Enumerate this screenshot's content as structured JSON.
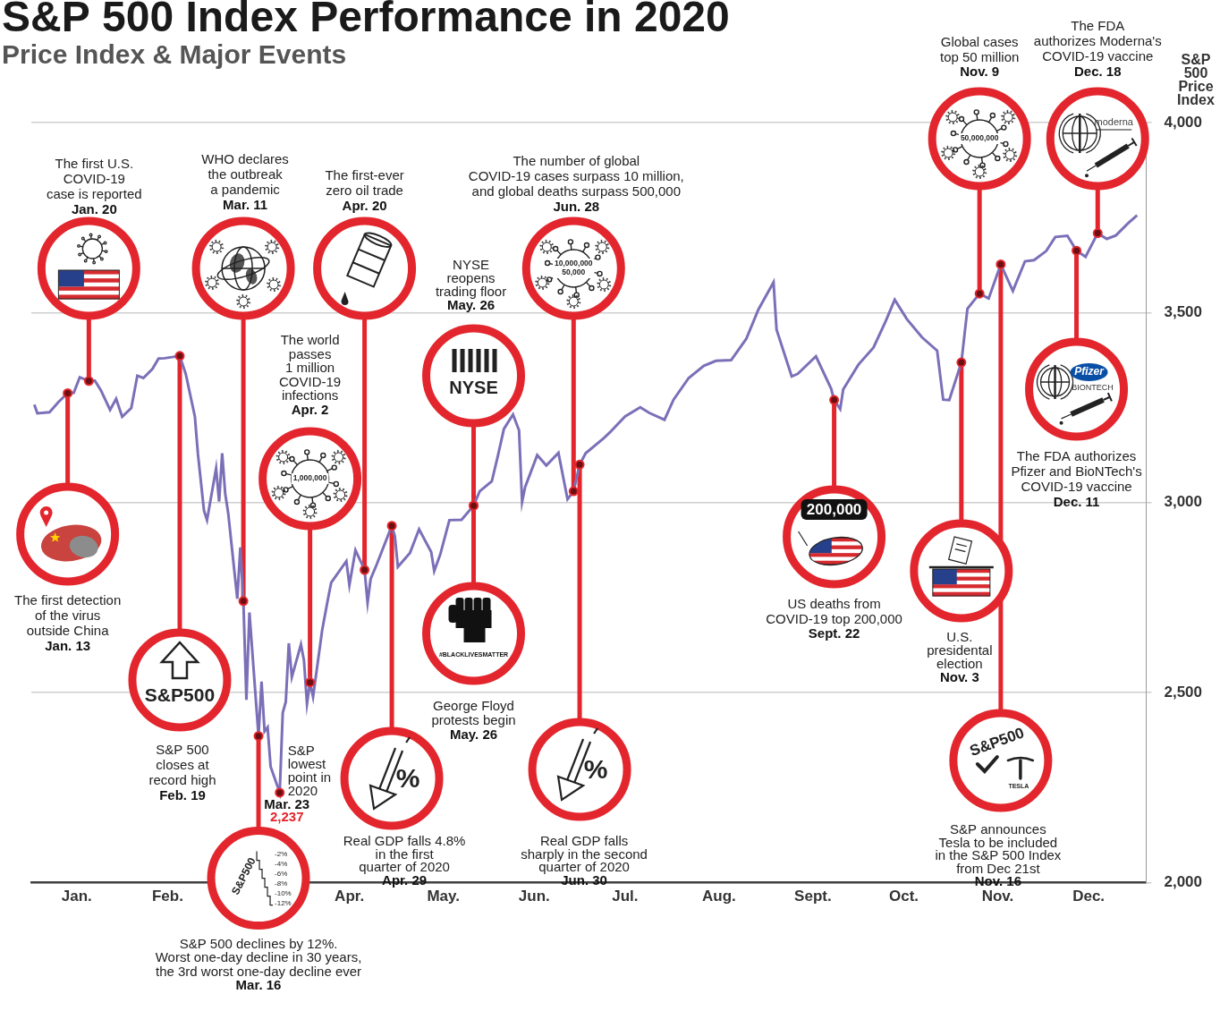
{
  "chart_data": {
    "type": "line",
    "title": "S&P 500 Index Performance in 2020",
    "subtitle": "Price Index & Major Events",
    "y_label": "S&P 500 Price Index",
    "color": "#7b70b8",
    "grid": true,
    "x": [
      2,
      3,
      7,
      10,
      13,
      15,
      17,
      20,
      22,
      24,
      27,
      29,
      31,
      34,
      36,
      38,
      41,
      43,
      45,
      50,
      52,
      55,
      56,
      58,
      59,
      62,
      63,
      64,
      65,
      66,
      69,
      70,
      71,
      72,
      73,
      76,
      77,
      78,
      79,
      80,
      83,
      84,
      85,
      86,
      87,
      90,
      91,
      92,
      93,
      94,
      97,
      99,
      100,
      105,
      106,
      108,
      111,
      112,
      113,
      115,
      120,
      121,
      122,
      126,
      129,
      133,
      134,
      136,
      139,
      143,
      147,
      149,
      153,
      155,
      157,
      160,
      162,
      163,
      164,
      168,
      171,
      175,
      178,
      180,
      182,
      184,
      190,
      192,
      197,
      202,
      205,
      210,
      213,
      218,
      223,
      227,
      232,
      237,
      241,
      246,
      247,
      252,
      254,
      260,
      265,
      266,
      268,
      269,
      274,
      279,
      283,
      286,
      290,
      295,
      300,
      302,
      304,
      308,
      310,
      314,
      317,
      321,
      325,
      329,
      332,
      336,
      339,
      343,
      346,
      349,
      353,
      356,
      359,
      363,
      366
    ],
    "values": [
      3258,
      3235,
      3238,
      3265,
      3288,
      3289,
      3330,
      3320,
      3321,
      3295,
      3244,
      3273,
      3226,
      3249,
      3334,
      3328,
      3352,
      3379,
      3380,
      3386,
      3338,
      3226,
      3128,
      2979,
      2954,
      3090,
      3003,
      3130,
      3024,
      2972,
      2747,
      2882,
      2741,
      2481,
      2711,
      2386,
      2529,
      2398,
      2409,
      2305,
      2237,
      2447,
      2476,
      2630,
      2541,
      2627,
      2585,
      2471,
      2527,
      2489,
      2664,
      2750,
      2790,
      2846,
      2783,
      2875,
      2823,
      2737,
      2799,
      2837,
      2939,
      2912,
      2831,
      2868,
      2930,
      2870,
      2820,
      2864,
      2954,
      2955,
      2992,
      3030,
      3056,
      3123,
      3194,
      3232,
      3190,
      3002,
      3041,
      3125,
      3098,
      3131,
      3009,
      3030,
      3100,
      3130,
      3170,
      3185,
      3227,
      3251,
      3236,
      3218,
      3271,
      3328,
      3360,
      3373,
      3375,
      3431,
      3508,
      3580,
      3455,
      3332,
      3339,
      3385,
      3300,
      3270,
      3246,
      3298,
      3363,
      3408,
      3477,
      3534,
      3483,
      3435,
      3400,
      3271,
      3270,
      3369,
      3510,
      3550,
      3537,
      3627,
      3557,
      3635,
      3638,
      3662,
      3699,
      3702,
      3663,
      3647,
      3709,
      3694,
      3703,
      3735,
      3756
    ],
    "xlim": [
      1,
      369
    ],
    "xticks": [
      {
        "value": 16,
        "label": "Jan."
      },
      {
        "value": 46,
        "label": "Feb."
      },
      {
        "value": 106,
        "label": "Apr."
      },
      {
        "value": 137,
        "label": "May."
      },
      {
        "value": 167,
        "label": "Jun."
      },
      {
        "value": 197,
        "label": "Jul."
      },
      {
        "value": 228,
        "label": "Aug."
      },
      {
        "value": 259,
        "label": "Sept."
      },
      {
        "value": 289,
        "label": "Oct."
      },
      {
        "value": 320,
        "label": "Nov."
      },
      {
        "value": 350,
        "label": "Dec."
      }
    ],
    "ylim": [
      2000,
      4000
    ],
    "yticks": [
      {
        "value": 2000,
        "label": "2,000"
      },
      {
        "value": 2500,
        "label": "2,500"
      },
      {
        "value": 3000,
        "label": "3,000"
      },
      {
        "value": 3500,
        "label": "3,500"
      },
      {
        "value": 4000,
        "label": "4,000"
      }
    ],
    "annotations": [
      {
        "x": 13,
        "value": 3288,
        "date": "Jan. 13",
        "text": [
          "The first detection",
          "of the virus",
          "outside China"
        ]
      },
      {
        "x": 20,
        "value": 3320,
        "date": "Jan. 20",
        "text": [
          "The first U.S.",
          "COVID-19",
          "case is reported"
        ]
      },
      {
        "x": 50,
        "value": 3386,
        "date": "Feb. 19",
        "text": [
          "S&P 500",
          "closes at",
          "record high"
        ],
        "icon_text": [
          "S&P500"
        ]
      },
      {
        "x": 71,
        "value": 2741,
        "date": "Mar. 11",
        "text": [
          "WHO declares",
          "the outbreak",
          "a pandemic"
        ]
      },
      {
        "x": 76,
        "value": 2386,
        "date": "Mar. 16",
        "text": [
          "S&P 500 declines by 12%.",
          "Worst one-day decline in 30 years,",
          "the 3rd worst one-day decline ever"
        ],
        "icon_text": [
          "S&P500",
          "-2%",
          "-4%",
          "-6%",
          "-8%",
          "-10%",
          "-12%"
        ]
      },
      {
        "x": 83,
        "value": 2237,
        "value_label": "2,237",
        "date": "Mar. 23",
        "text": [
          "S&P",
          "lowest",
          "point in",
          "2020"
        ]
      },
      {
        "x": 93,
        "value": 2527,
        "date": "Apr. 2",
        "text": [
          "The world",
          "passes",
          "1 million",
          "COVID-19",
          "infections"
        ],
        "icon_text": [
          "1,000,000"
        ]
      },
      {
        "x": 111,
        "value": 2823,
        "date": "Apr. 20",
        "text": [
          "The first-ever",
          "zero oil trade"
        ]
      },
      {
        "x": 120,
        "value": 2939,
        "date": "Apr. 29",
        "text": [
          "Real GDP falls 4.8%",
          "in the first",
          "quarter of 2020"
        ],
        "icon_text": [
          "%"
        ]
      },
      {
        "x": 147,
        "value": 2992,
        "date": "May. 26",
        "text": [
          "NYSE",
          "reopens",
          "trading floor"
        ],
        "icon_text": [
          "NYSE"
        ]
      },
      {
        "x": 147,
        "value": 2992,
        "date": "May. 26",
        "text": [
          "George Floyd",
          "protests begin"
        ],
        "icon_text": [
          "#BLACKLIVESMATTER"
        ]
      },
      {
        "x": 180,
        "value": 3030,
        "date": "Jun. 28",
        "text": [
          "The number of global",
          "COVID-19 cases surpass 10 million,",
          "and global deaths surpass 500,000"
        ],
        "icon_text": [
          "10,000,000",
          "50,000"
        ]
      },
      {
        "x": 182,
        "value": 3100,
        "date": "Jun. 30",
        "text": [
          "Real GDP falls",
          "sharply in the second",
          "quarter of 2020"
        ],
        "icon_text": [
          "%"
        ]
      },
      {
        "x": 266,
        "value": 3270,
        "date": "Sept. 22",
        "text": [
          "US deaths from",
          "COVID-19 top 200,000"
        ],
        "icon_text": [
          "200,000"
        ]
      },
      {
        "x": 308,
        "value": 3369,
        "date": "Nov. 3",
        "text": [
          "U.S.",
          "presidental",
          "election"
        ]
      },
      {
        "x": 314,
        "value": 3550,
        "date": "Nov. 9",
        "text": [
          "Global cases",
          "top 50 million"
        ],
        "icon_text": [
          "50,000,000"
        ]
      },
      {
        "x": 321,
        "value": 3627,
        "date": "Nov. 16",
        "text": [
          "S&P announces",
          "Tesla to be included",
          "in the S&P 500 Index",
          "from Dec 21st"
        ],
        "icon_text": [
          "S&P500",
          "TESLA"
        ]
      },
      {
        "x": 346,
        "value": 3663,
        "date": "Dec. 11",
        "text": [
          "The FDA authorizes",
          "Pfizer and BioNTech's",
          "COVID-19 vaccine"
        ],
        "icon_text": [
          "Pfizer",
          "BIONTECH"
        ]
      },
      {
        "x": 353,
        "value": 3709,
        "date": "Dec. 18",
        "text": [
          "The FDA",
          "authorizes Moderna's",
          "COVID-19 vaccine"
        ],
        "icon_text": [
          "moderna"
        ]
      }
    ]
  }
}
